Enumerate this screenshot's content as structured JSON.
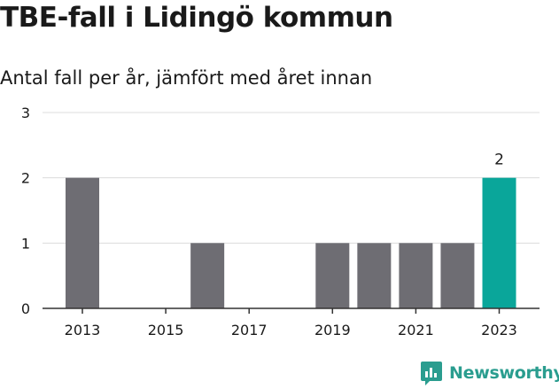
{
  "title": "TBE-fall i Lidingö kommun",
  "subtitle": "Antal fall per år, jämfört med året innan",
  "brand": "Newsworthy",
  "colors": {
    "bar": "#6e6d73",
    "highlight": "#0aa69a",
    "grid": "#dcdcdc",
    "axis": "#333333",
    "brand": "#2a9d8f"
  },
  "chart_data": {
    "type": "bar",
    "categories": [
      "2013",
      "2014",
      "2015",
      "2016",
      "2017",
      "2018",
      "2019",
      "2020",
      "2021",
      "2022",
      "2023"
    ],
    "values": [
      2,
      0,
      0,
      1,
      0,
      0,
      1,
      1,
      1,
      1,
      2
    ],
    "highlight_index": 10,
    "highlight_label": "2",
    "ylim": [
      0,
      3
    ],
    "yticks": [
      0,
      1,
      2,
      3
    ],
    "xtick_labels": [
      "2013",
      "2015",
      "2017",
      "2019",
      "2021",
      "2023"
    ],
    "grid": true,
    "xlabel": "",
    "ylabel": ""
  }
}
